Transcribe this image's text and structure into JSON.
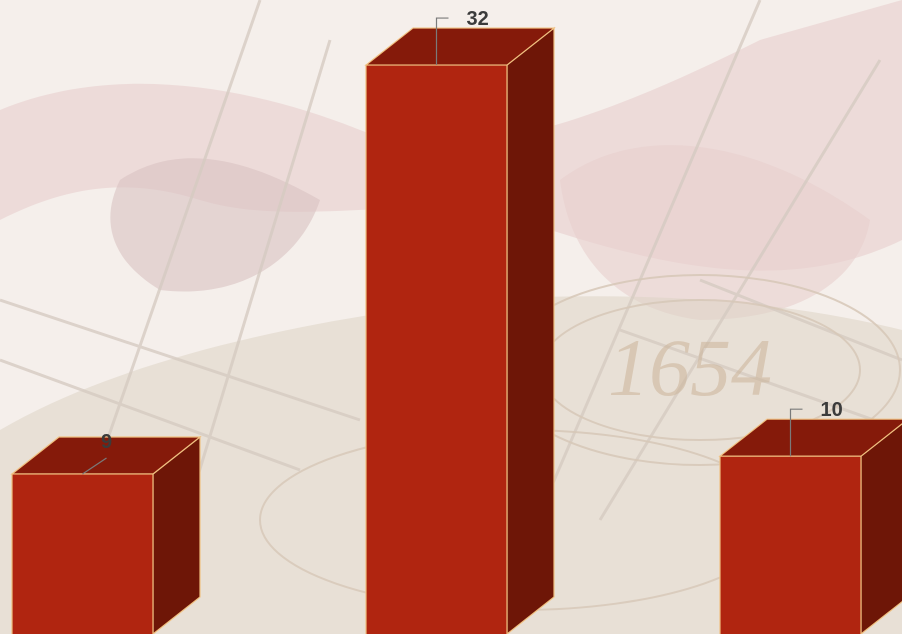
{
  "colors": {
    "bar_front": "#b02510",
    "bar_top": "#851a0a",
    "bar_side": "#6e1607",
    "bar_edge": "#f0c080",
    "label": "#3b3b3b",
    "leader": "#7a7a7a",
    "background": "#f4eeea"
  },
  "background_image": {
    "visible_text": "1654"
  },
  "chart_data": {
    "type": "bar",
    "style": "3d-columns",
    "title": "",
    "xlabel": "",
    "ylabel": "",
    "categories": [
      "",
      "",
      ""
    ],
    "values": [
      9,
      32,
      10
    ],
    "data_labels": [
      "9",
      "32",
      "10"
    ],
    "axes_visible": false,
    "grid": false,
    "legend": "none"
  }
}
